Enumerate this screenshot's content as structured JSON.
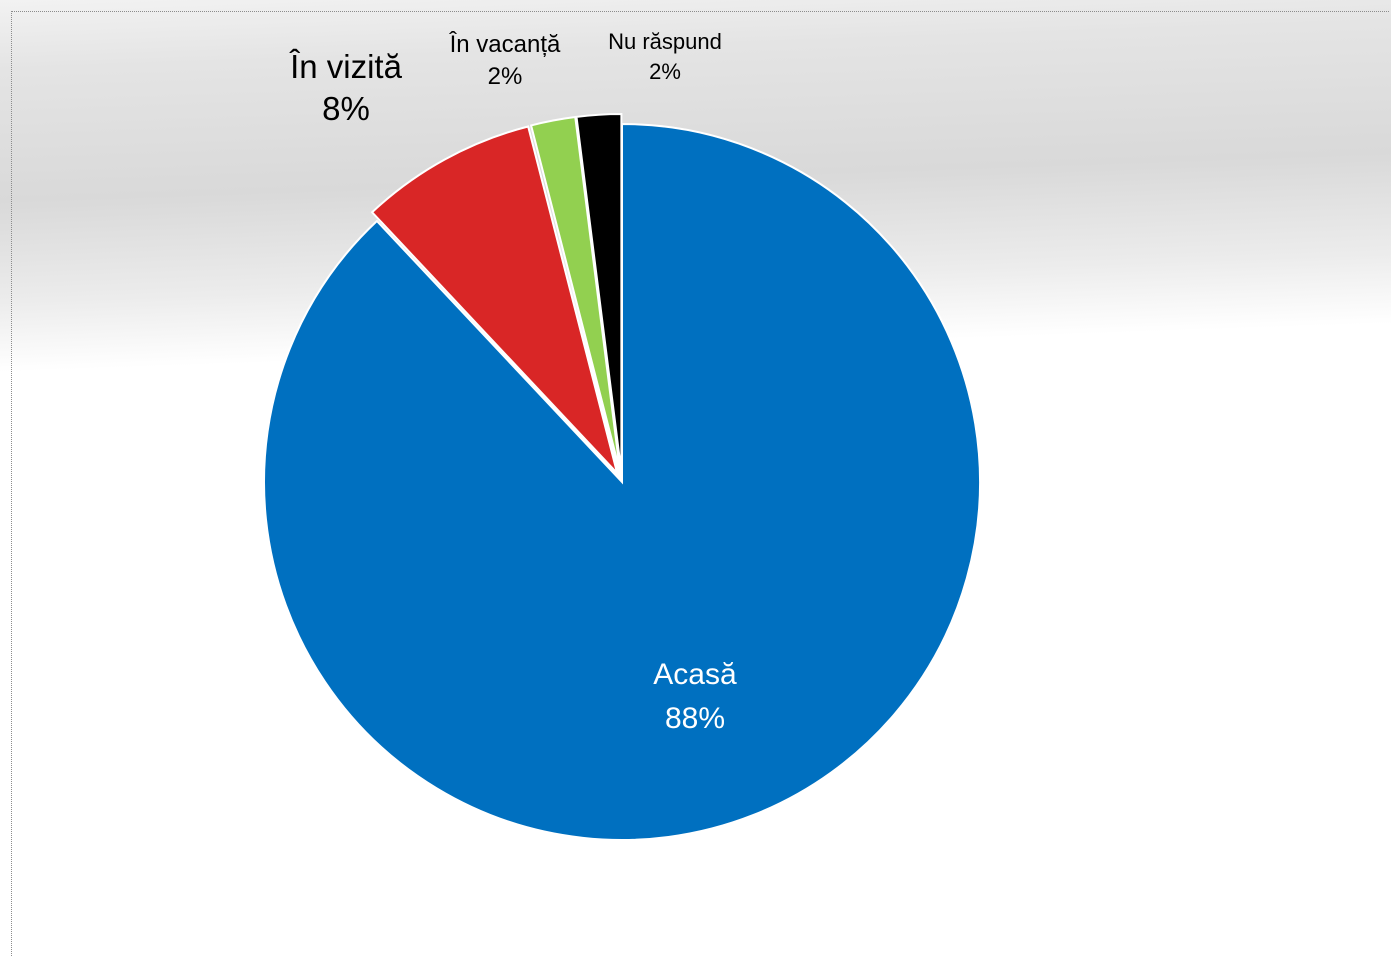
{
  "chart_data": {
    "type": "pie",
    "title": "",
    "slices": [
      {
        "label": "Acasă",
        "value": 88,
        "value_label": "88%",
        "color": "#0070c0"
      },
      {
        "label": "În vizită",
        "value": 8,
        "value_label": "8%",
        "color": "#d92626"
      },
      {
        "label": "În vacanță",
        "value": 2,
        "value_label": "2%",
        "color": "#92d050"
      },
      {
        "label": "Nu răspund",
        "value": 2,
        "value_label": "2%",
        "color": "#000000"
      }
    ],
    "exploded": true,
    "legend": "none"
  }
}
